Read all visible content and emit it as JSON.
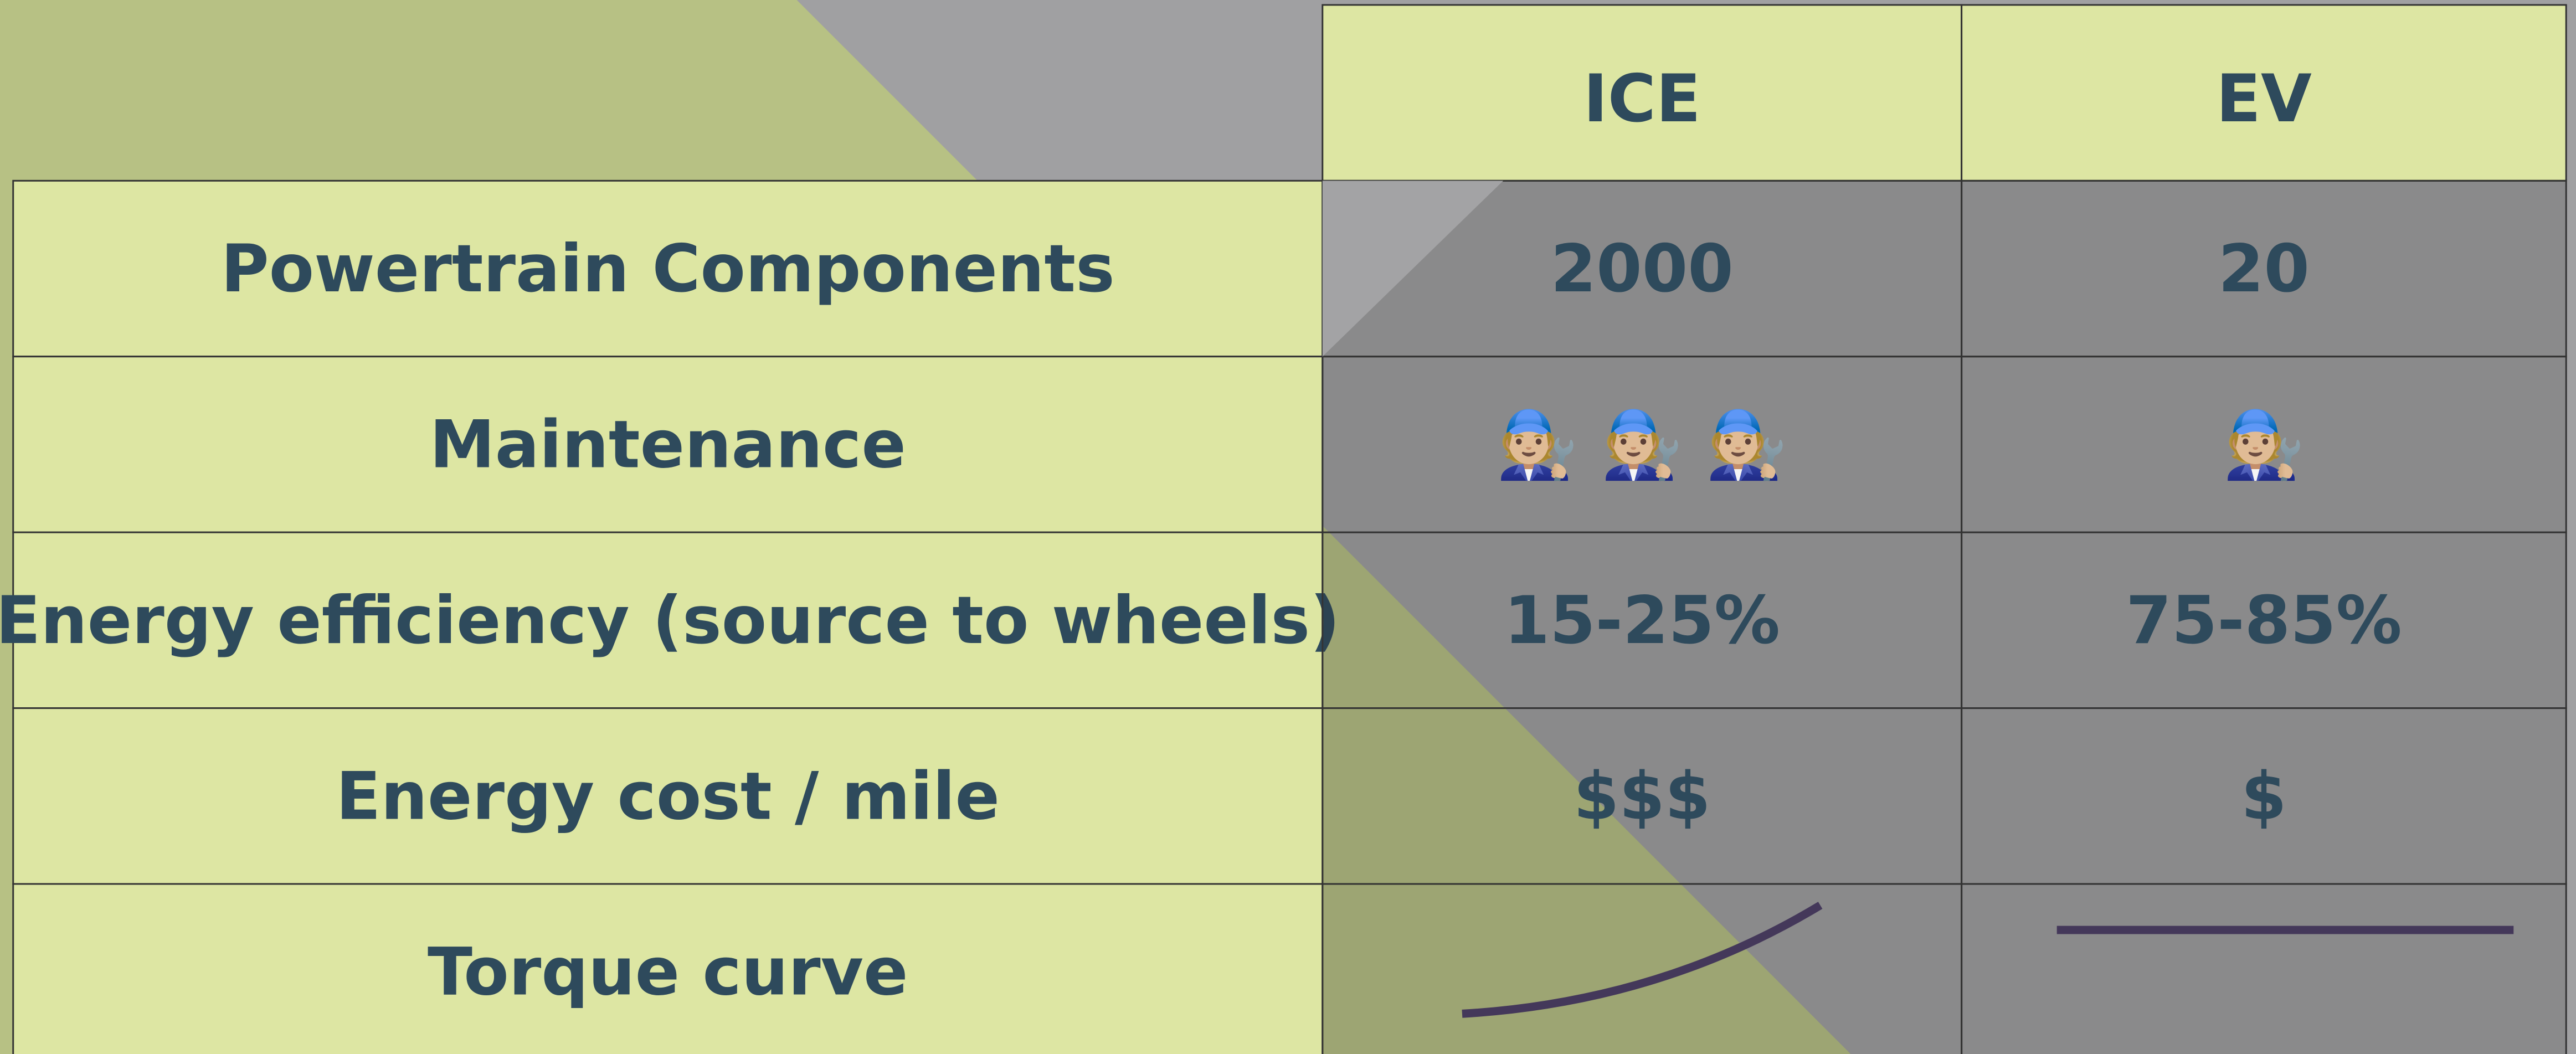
{
  "table": {
    "header": [
      "ICE",
      "EV"
    ],
    "rows": [
      {
        "label": "Powertrain Components",
        "values": [
          2000,
          20
        ]
      },
      {
        "label": "Maintenance",
        "values": [
          "🧑🏼‍🔧 🧑🏼‍🔧 🧑🏼‍🔧",
          "🧑🏼‍🔧"
        ]
      },
      {
        "label": "Energy efficiency (source to wheels)",
        "values": [
          "15-25%",
          "75-85%"
        ]
      },
      {
        "label": "Energy cost / mile",
        "values": [
          "$$$",
          "$"
        ]
      },
      {
        "label": "Torque curve"
      }
    ]
  }
}
